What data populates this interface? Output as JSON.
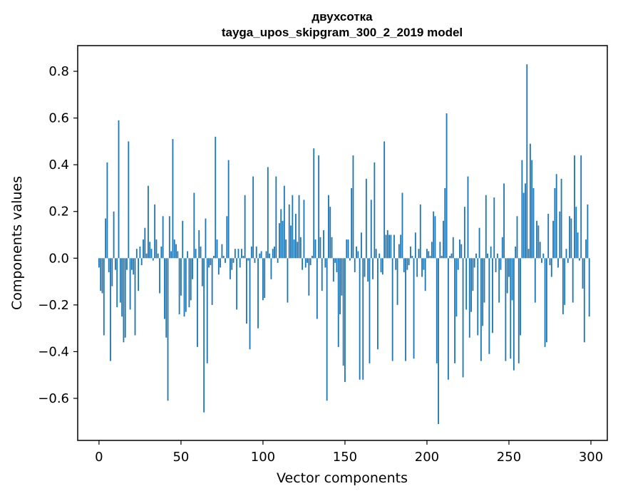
{
  "chart_data": {
    "type": "bar",
    "title": "двухсотка",
    "subtitle": "tayga_upos_skipgram_300_2_2019 model",
    "xlabel": "Vector components",
    "ylabel": "Components values",
    "xlim": [
      -13,
      310
    ],
    "ylim": [
      -0.78,
      0.91
    ],
    "xticks": [
      0,
      50,
      100,
      150,
      200,
      250,
      300
    ],
    "xtick_labels": [
      "0",
      "50",
      "100",
      "150",
      "200",
      "250",
      "300"
    ],
    "yticks": [
      -0.6,
      -0.4,
      -0.2,
      0.0,
      0.2,
      0.4,
      0.6,
      0.8
    ],
    "ytick_labels": [
      "−0.6",
      "−0.4",
      "−0.2",
      "0.0",
      "0.2",
      "0.4",
      "0.6",
      "0.8"
    ],
    "grid": false,
    "bar_color": "#1f77b4",
    "series": [
      {
        "values": [
          -0.04,
          -0.14,
          -0.15,
          -0.33,
          0.17,
          0.41,
          -0.06,
          -0.44,
          -0.12,
          0.2,
          -0.05,
          -0.21,
          0.59,
          -0.19,
          -0.25,
          -0.36,
          -0.34,
          -0.05,
          0.5,
          -0.22,
          -0.05,
          -0.07,
          -0.33,
          0.04,
          -0.14,
          0.05,
          -0.03,
          0.08,
          0.13,
          0.02,
          0.31,
          0.07,
          0.04,
          -0.01,
          0.23,
          0.08,
          0.02,
          -0.15,
          0.05,
          0.18,
          -0.26,
          -0.34,
          -0.61,
          0.18,
          0.03,
          0.51,
          0.08,
          0.06,
          0.03,
          -0.24,
          -0.16,
          0.16,
          -0.25,
          -0.23,
          0.03,
          -0.21,
          -0.18,
          -0.09,
          0.28,
          0.04,
          -0.38,
          0.12,
          0.05,
          -0.12,
          -0.66,
          0.17,
          -0.45,
          -0.04,
          -0.03,
          -0.2,
          0.01,
          0.52,
          0.08,
          -0.07,
          -0.04,
          0.06,
          0.01,
          -0.02,
          0.18,
          0.42,
          -0.09,
          -0.05,
          -0.02,
          0.04,
          -0.22,
          0.04,
          -0.04,
          0.04,
          0.01,
          0.27,
          -0.28,
          -0.01,
          -0.39,
          0.05,
          0.35,
          -0.02,
          0.05,
          -0.3,
          0.02,
          0.03,
          -0.18,
          -0.17,
          0.03,
          0.39,
          0.02,
          -0.09,
          0.04,
          0.05,
          0.35,
          -0.02,
          0.15,
          0.21,
          0.16,
          0.31,
          0.08,
          -0.19,
          0.23,
          0.14,
          0.27,
          0.08,
          0.19,
          0.07,
          0.27,
          0.09,
          -0.05,
          0.25,
          -0.04,
          -0.02,
          -0.16,
          -0.03,
          0.01,
          0.47,
          0.08,
          -0.26,
          0.44,
          0.09,
          -0.14,
          0.12,
          -0.04,
          -0.61,
          0.27,
          0.22,
          0.09,
          -0.1,
          -0.02,
          -0.06,
          -0.38,
          -0.24,
          -0.16,
          -0.46,
          -0.53,
          0.08,
          0.08,
          -0.01,
          0.3,
          0.44,
          -0.06,
          0.05,
          0.03,
          -0.52,
          0.11,
          -0.52,
          -0.08,
          0.34,
          -0.1,
          -0.45,
          0.25,
          -0.09,
          0.41,
          0.04,
          -0.39,
          0.02,
          -0.06,
          -0.07,
          0.5,
          0.1,
          0.12,
          0.1,
          0.1,
          -0.44,
          0.1,
          -0.05,
          -0.2,
          0.06,
          0.1,
          0.28,
          -0.06,
          -0.44,
          -0.05,
          -0.03,
          0.05,
          0.01,
          -0.43,
          0.11,
          -0.08,
          0.04,
          0.23,
          -0.08,
          -0.05,
          -0.14,
          0.04,
          0.03,
          0.01,
          0.07,
          0.2,
          0.18,
          -0.45,
          -0.71,
          0.07,
          0.01,
          0.16,
          0.3,
          0.62,
          -0.52,
          0.01,
          0.02,
          0.09,
          -0.45,
          -0.25,
          -0.05,
          0.08,
          0.06,
          -0.51,
          0.22,
          -0.22,
          0.35,
          -0.34,
          -0.23,
          -0.14,
          -0.04,
          0.02,
          -0.33,
          0.13,
          -0.44,
          -0.29,
          -0.19,
          0.27,
          0.02,
          -0.41,
          0.05,
          -0.32,
          0.26,
          -0.06,
          0.02,
          -0.19,
          -0.05,
          0.09,
          0.32,
          -0.44,
          -0.15,
          -0.08,
          -0.43,
          -0.18,
          -0.48,
          0.05,
          0.18,
          -0.45,
          -0.33,
          0.42,
          0.28,
          0.32,
          0.83,
          0.04,
          0.49,
          0.42,
          0.3,
          -0.19,
          0.16,
          0.14,
          0.07,
          -0.02,
          0.02,
          -0.38,
          -0.36,
          0.19,
          -0.03,
          -0.08,
          0.16,
          0.3,
          0.36,
          -0.04,
          0.2,
          0.34,
          -0.24,
          -0.2,
          0.04,
          -0.02,
          0.18,
          0.17,
          -0.19,
          0.44,
          0.22,
          0.11,
          -0.01,
          0.44,
          -0.13,
          -0.36,
          0.08,
          0.23,
          -0.25
        ]
      }
    ]
  }
}
